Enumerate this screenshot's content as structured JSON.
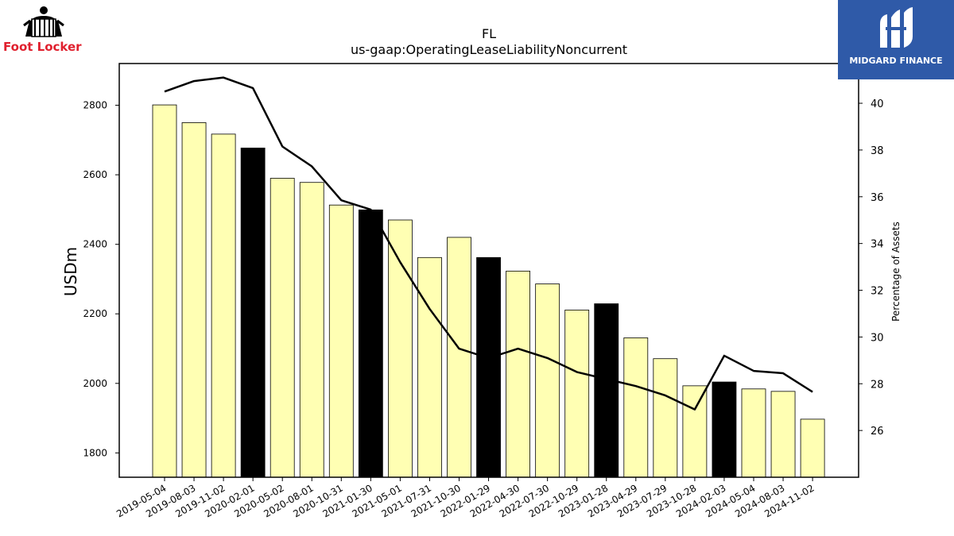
{
  "brand": {
    "left_logo_text": "Foot Locker",
    "right_logo_text": "MIDGARD FINANCE",
    "left_logo_color": "#e0202e",
    "right_logo_bg": "#2f5aa8"
  },
  "chart_data": {
    "type": "bar",
    "title": "FL",
    "subtitle": "us-gaap:OperatingLeaseLiabilityNoncurrent",
    "ylabel": "USDm",
    "y2label": "Percentage of Assets",
    "ylim": [
      1730,
      2920
    ],
    "y2lim": [
      24.0,
      41.7
    ],
    "yticks": [
      1800,
      2000,
      2200,
      2400,
      2600,
      2800
    ],
    "y2ticks": [
      26,
      28,
      30,
      32,
      34,
      36,
      38,
      40
    ],
    "categories": [
      "2019-05-04",
      "2019-08-03",
      "2019-11-02",
      "2020-02-01",
      "2020-05-02",
      "2020-08-01",
      "2020-10-31",
      "2021-01-30",
      "2021-05-01",
      "2021-07-31",
      "2021-10-30",
      "2022-01-29",
      "2022-04-30",
      "2022-07-30",
      "2022-10-29",
      "2023-01-28",
      "2023-04-29",
      "2023-07-29",
      "2023-10-28",
      "2024-02-03",
      "2024-05-04",
      "2024-08-03",
      "2024-11-02"
    ],
    "series": [
      {
        "axis": "left",
        "kind": "bar",
        "values": [
          2801,
          2750,
          2717,
          2677,
          2590,
          2578,
          2513,
          2499,
          2470,
          2362,
          2420,
          2362,
          2323,
          2286,
          2211,
          2229,
          2131,
          2071,
          1993,
          2004,
          1984,
          1977,
          1897
        ],
        "highlight": [
          false,
          false,
          false,
          true,
          false,
          false,
          false,
          true,
          false,
          false,
          false,
          true,
          false,
          false,
          false,
          true,
          false,
          false,
          false,
          true,
          false,
          false,
          false
        ]
      },
      {
        "axis": "right",
        "kind": "line",
        "values": [
          40.5,
          40.95,
          41.1,
          40.65,
          38.15,
          37.3,
          35.85,
          35.45,
          33.2,
          31.2,
          29.5,
          29.1,
          29.5,
          29.1,
          28.5,
          28.2,
          27.9,
          27.5,
          26.9,
          29.2,
          28.55,
          28.45,
          27.65
        ]
      }
    ],
    "colors": {
      "bar": "#ffffb3",
      "bar_highlight": "#000000",
      "line": "#000000"
    },
    "grid": false,
    "legend": "none"
  }
}
